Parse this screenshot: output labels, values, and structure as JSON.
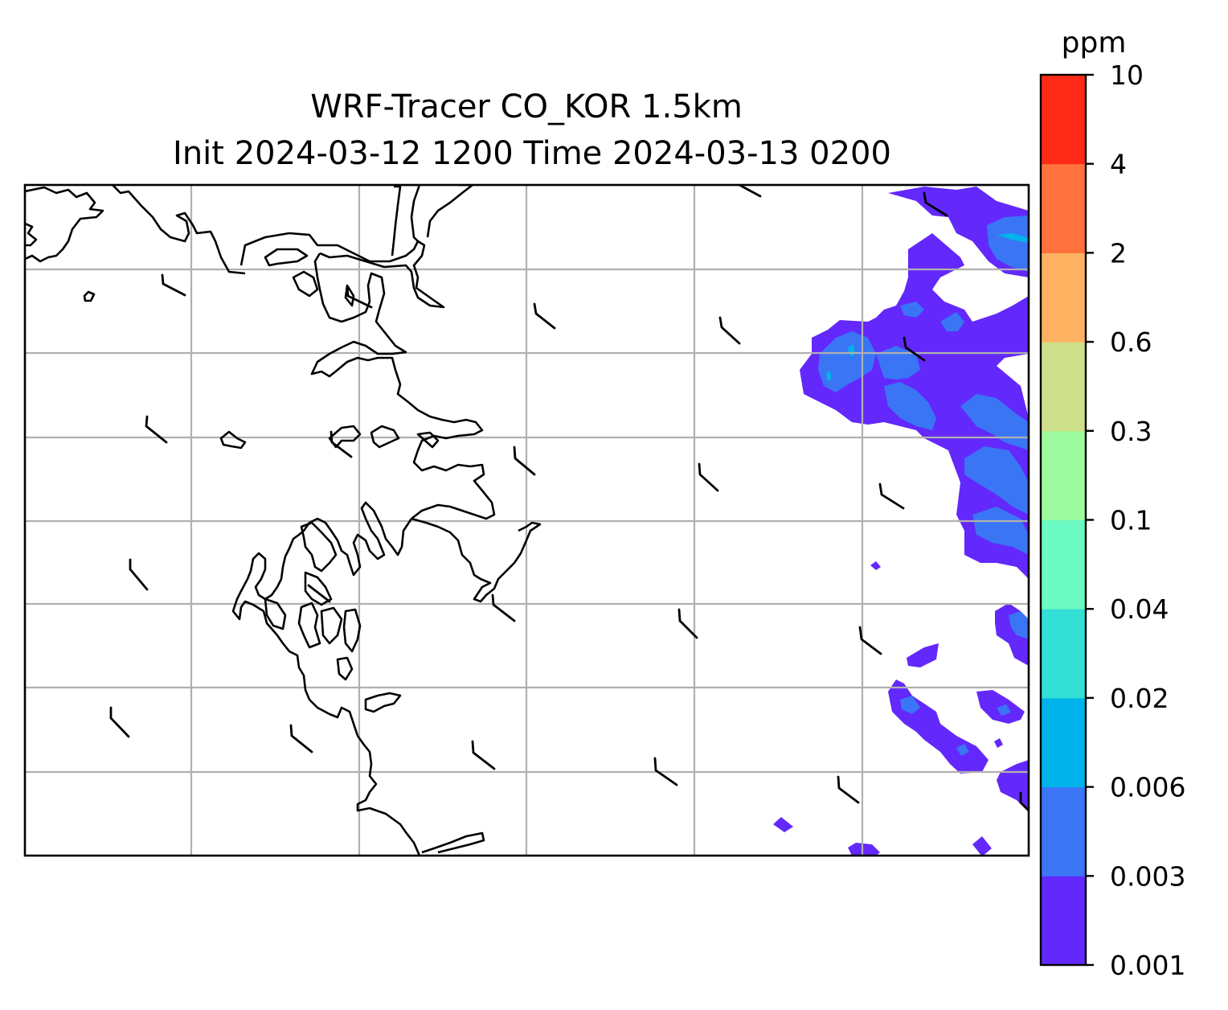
{
  "title": {
    "line1": "WRF-Tracer CO_KOR 1.5km",
    "line2": "Init 2024-03-12 1200 Time 2024-03-13 0200"
  },
  "colorbar": {
    "unit": "ppm",
    "levels": [
      "0.001",
      "0.003",
      "0.006",
      "0.02",
      "0.04",
      "0.1",
      "0.3",
      "0.6",
      "2",
      "4",
      "10"
    ],
    "colors": [
      "#6328fb",
      "#3a75f5",
      "#00b4eb",
      "#33e0d6",
      "#6bfac1",
      "#9cfb9e",
      "#cfe08a",
      "#feb261",
      "#ff723d",
      "#fe2a17"
    ]
  },
  "map": {
    "gridlines": true,
    "wind_barb_description": "light wind barbs (half/full flags) over grid",
    "contour_region": "east"
  }
}
